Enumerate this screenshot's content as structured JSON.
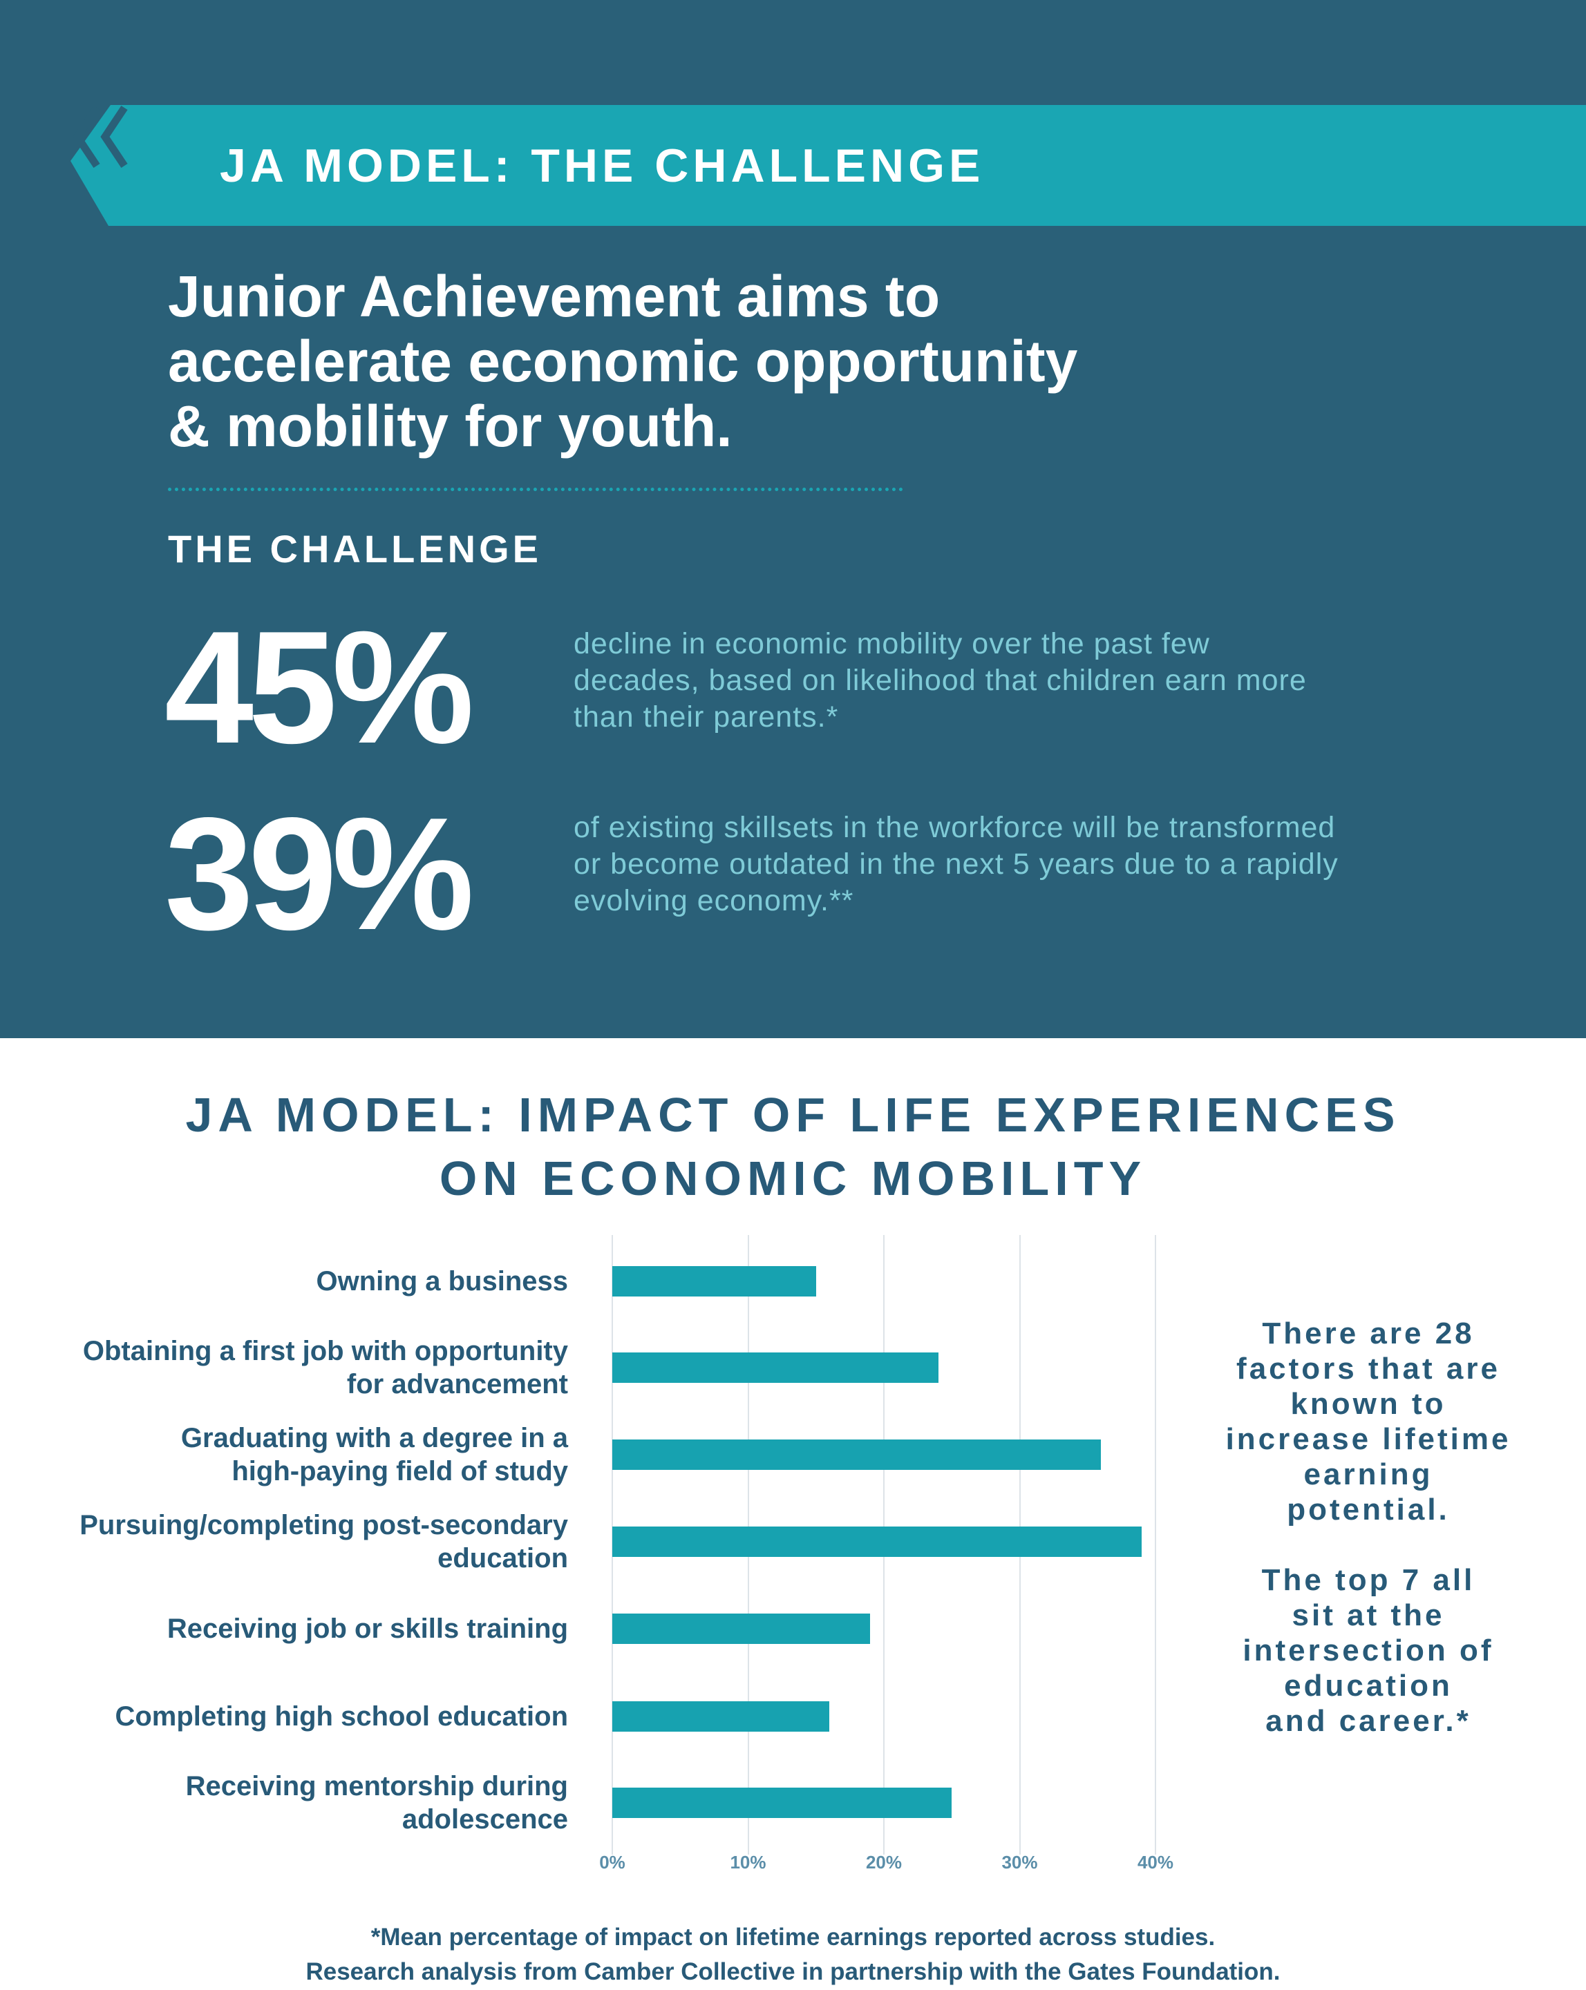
{
  "header": {
    "banner_title": "JA MODEL: THE CHALLENGE",
    "banner_icon": "double-chevron-left-icon",
    "headline_lines": [
      "Junior Achievement aims to",
      "accelerate economic opportunity",
      "& mobility for youth."
    ],
    "section_label": "THE CHALLENGE"
  },
  "stats": [
    {
      "value": "45%",
      "description_lines": [
        "decline in economic mobility over the past few",
        "decades, based on likelihood that children earn more",
        "than their parents.*"
      ]
    },
    {
      "value": "39%",
      "description_lines": [
        "of existing skillsets in the workforce will be transformed",
        "or become outdated in the next 5 years due to a rapidly",
        "evolving economy.**"
      ]
    }
  ],
  "section2": {
    "title_lines": [
      "JA MODEL: IMPACT OF LIFE EXPERIENCES",
      "ON ECONOMIC MOBILITY"
    ]
  },
  "chart_data": {
    "type": "bar",
    "orientation": "horizontal",
    "title": "JA MODEL: IMPACT OF LIFE EXPERIENCES ON ECONOMIC MOBILITY",
    "xlabel": "",
    "ylabel": "",
    "categories": [
      "Owning a business",
      "Obtaining a first job with opportunity for advancement",
      "Graduating with a degree in a high-paying field of study",
      "Pursuing/completing post-secondary education",
      "Receiving job or skills training",
      "Completing high school education",
      "Receiving mentorship during adolescence"
    ],
    "category_label_lines": [
      [
        "Owning a business"
      ],
      [
        "Obtaining a first job with opportunity",
        "for advancement"
      ],
      [
        "Graduating with a degree in a",
        "high-paying field of study"
      ],
      [
        "Pursuing/completing post-secondary",
        "education"
      ],
      [
        "Receiving job or skills training"
      ],
      [
        "Completing high school education"
      ],
      [
        "Receiving mentorship during",
        "adolescence"
      ]
    ],
    "values": [
      15,
      24,
      36,
      39,
      19,
      16,
      25
    ],
    "unit": "%",
    "xlim": [
      0,
      40
    ],
    "xticks": [
      "0%",
      "10%",
      "20%",
      "30%",
      "40%"
    ],
    "grid": true,
    "legend": null,
    "bar_color": "#17a2b0"
  },
  "side_note": {
    "para1_lines": [
      "There are 28",
      "factors that are",
      "known to",
      "increase lifetime",
      "earning",
      "potential."
    ],
    "para2_lines": [
      "The top 7 all",
      "sit at the",
      "intersection of",
      "education",
      "and career.*"
    ]
  },
  "footer": {
    "lines": [
      "*Mean percentage of impact on lifetime earnings reported across studies.",
      "Research analysis from Camber Collective in partnership with the Gates Foundation."
    ]
  },
  "colors": {
    "dark_bg": "#2a6078",
    "accent_teal": "#1aa6b3",
    "stat_desc": "#7fcbd7",
    "heading_dark": "#285a78",
    "bar": "#17a2b0"
  }
}
